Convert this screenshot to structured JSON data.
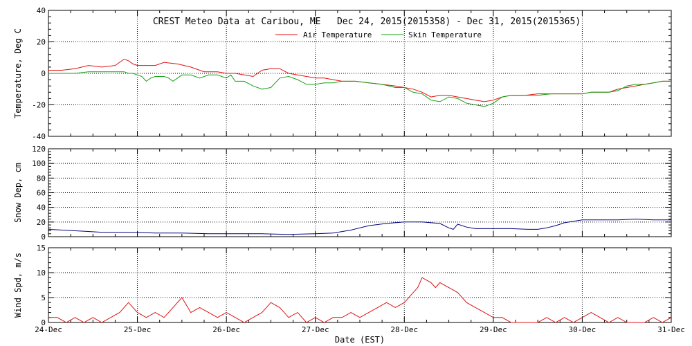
{
  "chart_data": [
    {
      "type": "line",
      "title": "CREST Meteo Data at Caribou, ME   Dec 24, 2015(2015358) - Dec 31, 2015(2015365)",
      "ylabel": "Temperature, Deg C",
      "xlim": [
        0,
        7
      ],
      "ylim": [
        -40,
        40
      ],
      "yticks": [
        "-40",
        "-20",
        "0",
        "20",
        "40"
      ],
      "grid": true,
      "legend_position": "top-center",
      "series": [
        {
          "name": "Air Temperature",
          "color": "#e01010",
          "x": [
            0.0,
            0.15,
            0.3,
            0.45,
            0.6,
            0.75,
            0.85,
            0.9,
            0.95,
            1.0,
            1.1,
            1.2,
            1.3,
            1.45,
            1.6,
            1.75,
            1.9,
            2.0,
            2.1,
            2.2,
            2.3,
            2.4,
            2.5,
            2.6,
            2.7,
            2.8,
            2.9,
            3.0,
            3.1,
            3.2,
            3.3,
            3.45,
            3.6,
            3.75,
            3.9,
            4.0,
            4.1,
            4.2,
            4.3,
            4.4,
            4.5,
            4.6,
            4.7,
            4.8,
            4.9,
            5.0,
            5.1,
            5.2,
            5.35,
            5.5,
            5.65,
            5.8,
            5.9,
            6.0,
            6.1,
            6.2,
            6.3,
            6.4,
            6.5,
            6.6,
            6.7,
            6.8,
            6.9,
            7.0
          ],
          "y": [
            2,
            2,
            3,
            5,
            4,
            5,
            9,
            8,
            6,
            5,
            5,
            5,
            7,
            6,
            4,
            1,
            1,
            0,
            0,
            -1,
            -2,
            2,
            3,
            3,
            0,
            -1,
            -2,
            -3,
            -3,
            -4,
            -5,
            -5,
            -6,
            -7,
            -8,
            -9,
            -10,
            -12,
            -15,
            -14,
            -14,
            -15,
            -16,
            -17,
            -18,
            -17,
            -15,
            -14,
            -14,
            -13,
            -13,
            -13,
            -13,
            -13,
            -12,
            -12,
            -12,
            -10,
            -9,
            -8,
            -7,
            -6,
            -5,
            -5
          ]
        },
        {
          "name": "Skin Temperature",
          "color": "#10a010",
          "x": [
            0.0,
            0.15,
            0.3,
            0.45,
            0.6,
            0.75,
            0.85,
            0.9,
            0.95,
            1.0,
            1.05,
            1.1,
            1.15,
            1.2,
            1.3,
            1.35,
            1.4,
            1.5,
            1.6,
            1.7,
            1.8,
            1.9,
            2.0,
            2.05,
            2.1,
            2.2,
            2.3,
            2.4,
            2.5,
            2.6,
            2.7,
            2.8,
            2.9,
            3.0,
            3.1,
            3.2,
            3.3,
            3.45,
            3.6,
            3.75,
            3.9,
            4.0,
            4.1,
            4.2,
            4.3,
            4.4,
            4.5,
            4.6,
            4.7,
            4.8,
            4.9,
            5.0,
            5.1,
            5.2,
            5.35,
            5.5,
            5.65,
            5.8,
            5.9,
            6.0,
            6.1,
            6.2,
            6.3,
            6.4,
            6.5,
            6.6,
            6.7,
            6.8,
            6.9,
            7.0
          ],
          "y": [
            0,
            0,
            0,
            1,
            1,
            1,
            1,
            0,
            0,
            -1,
            -2,
            -5,
            -3,
            -2,
            -2,
            -3,
            -5,
            -1,
            -1,
            -3,
            -1,
            -1,
            -3,
            -1,
            -5,
            -5,
            -8,
            -10,
            -9,
            -3,
            -2,
            -4,
            -7,
            -7,
            -6,
            -6,
            -5,
            -5,
            -6,
            -7,
            -9,
            -9,
            -12,
            -13,
            -17,
            -18,
            -15,
            -16,
            -19,
            -20,
            -21,
            -19,
            -15,
            -14,
            -14,
            -14,
            -13,
            -13,
            -13,
            -13,
            -12,
            -12,
            -12,
            -11,
            -8,
            -7,
            -7,
            -6,
            -5,
            -5
          ]
        }
      ]
    },
    {
      "type": "line",
      "ylabel": "Snow Dep, cm",
      "xlim": [
        0,
        7
      ],
      "ylim": [
        0,
        120
      ],
      "yticks": [
        "0",
        "20",
        "40",
        "60",
        "80",
        "100",
        "120"
      ],
      "grid": true,
      "series": [
        {
          "name": "",
          "color": "#000080",
          "x": [
            0.0,
            0.3,
            0.6,
            0.9,
            1.2,
            1.5,
            1.8,
            2.1,
            2.4,
            2.7,
            3.0,
            3.2,
            3.4,
            3.6,
            3.8,
            4.0,
            4.2,
            4.3,
            4.4,
            4.5,
            4.55,
            4.6,
            4.7,
            4.8,
            5.0,
            5.2,
            5.4,
            5.5,
            5.6,
            5.7,
            5.8,
            6.0,
            6.2,
            6.4,
            6.6,
            6.8,
            7.0
          ],
          "y": [
            10,
            8,
            6,
            6,
            5,
            5,
            4,
            4,
            4,
            3,
            4,
            5,
            9,
            15,
            18,
            20,
            20,
            19,
            18,
            12,
            10,
            17,
            13,
            11,
            11,
            11,
            10,
            10,
            12,
            15,
            19,
            23,
            23,
            23,
            24,
            23,
            23
          ]
        }
      ]
    },
    {
      "type": "line",
      "ylabel": "Wind Spd, m/s",
      "xlabel": "Date (EST)",
      "xlim": [
        0,
        7
      ],
      "ylim": [
        0,
        15
      ],
      "yticks": [
        "0",
        "5",
        "10",
        "15"
      ],
      "xticks": [
        "24-Dec",
        "25-Dec",
        "26-Dec",
        "27-Dec",
        "28-Dec",
        "29-Dec",
        "30-Dec",
        "31-Dec"
      ],
      "grid": true,
      "series": [
        {
          "name": "",
          "color": "#e01010",
          "x": [
            0.0,
            0.1,
            0.2,
            0.3,
            0.4,
            0.5,
            0.6,
            0.7,
            0.8,
            0.9,
            1.0,
            1.1,
            1.2,
            1.3,
            1.4,
            1.5,
            1.6,
            1.7,
            1.8,
            1.9,
            2.0,
            2.1,
            2.2,
            2.3,
            2.4,
            2.5,
            2.6,
            2.7,
            2.8,
            2.9,
            3.0,
            3.1,
            3.2,
            3.3,
            3.4,
            3.5,
            3.6,
            3.7,
            3.8,
            3.9,
            4.0,
            4.1,
            4.15,
            4.2,
            4.3,
            4.35,
            4.4,
            4.5,
            4.6,
            4.7,
            4.8,
            4.9,
            5.0,
            5.1,
            5.2,
            5.3,
            5.4,
            5.5,
            5.6,
            5.7,
            5.8,
            5.9,
            6.0,
            6.1,
            6.2,
            6.3,
            6.4,
            6.5,
            6.6,
            6.7,
            6.8,
            6.9,
            7.0
          ],
          "y": [
            1,
            1,
            0,
            1,
            0,
            1,
            0,
            1,
            2,
            4,
            2,
            1,
            2,
            1,
            3,
            5,
            2,
            3,
            2,
            1,
            2,
            1,
            0,
            1,
            2,
            4,
            3,
            1,
            2,
            0,
            1,
            0,
            1,
            1,
            2,
            1,
            2,
            3,
            4,
            3,
            4,
            6,
            7,
            9,
            8,
            7,
            8,
            7,
            6,
            4,
            3,
            2,
            1,
            1,
            0,
            0,
            0,
            0,
            1,
            0,
            1,
            0,
            1,
            2,
            1,
            0,
            1,
            0,
            0,
            0,
            1,
            0,
            1
          ]
        }
      ]
    }
  ]
}
